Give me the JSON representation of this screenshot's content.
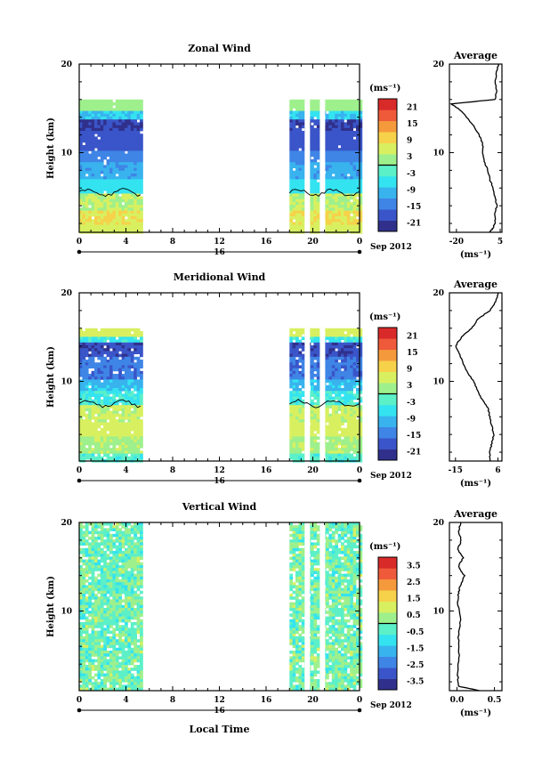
{
  "figure": {
    "x_axis_title": "Local Time",
    "date_label": "16",
    "month_year_label": "Sep 2012",
    "x_ticks": [
      "0",
      "4",
      "8",
      "12",
      "16",
      "20",
      "0"
    ],
    "y_label": "Height (km)",
    "y_ticks": [
      "20",
      "10"
    ],
    "colorbar_unit": "(ms⁻¹)",
    "profile_title": "Average"
  },
  "chart_data": [
    {
      "type": "heatmap",
      "title": "Zonal Wind",
      "xlabel": "",
      "ylabel": "Height (km)",
      "x_unit": "hours local time, 16 Sep 2012",
      "xlim": [
        0,
        24
      ],
      "ylim": [
        1,
        20
      ],
      "data_columns": [
        [
          0,
          5.3
        ],
        [
          18,
          24
        ]
      ],
      "band_top_km": 16,
      "clim": [
        -24,
        24
      ],
      "colorbar_ticks": [
        "21",
        "15",
        "9",
        "3",
        "-3",
        "-9",
        "-15",
        "-21"
      ],
      "zero_contour": true,
      "profile": {
        "title": "Average",
        "x_ticks": [
          "-20",
          "5"
        ],
        "xlim": [
          -24,
          6
        ],
        "xlabel": "(ms⁻¹)",
        "points": [
          [
            -1,
            1
          ],
          [
            1,
            1.5
          ],
          [
            2,
            2
          ],
          [
            2,
            3
          ],
          [
            3,
            4
          ],
          [
            2,
            5
          ],
          [
            1,
            6
          ],
          [
            -1,
            7
          ],
          [
            -2,
            8
          ],
          [
            -4,
            9
          ],
          [
            -5,
            10
          ],
          [
            -5,
            11
          ],
          [
            -7,
            12
          ],
          [
            -10,
            13
          ],
          [
            -14,
            14
          ],
          [
            -19,
            15
          ],
          [
            -23,
            15.5
          ],
          [
            2,
            16
          ],
          [
            3,
            17
          ],
          [
            2,
            18
          ],
          [
            3,
            19
          ],
          [
            4,
            20
          ]
        ]
      }
    },
    {
      "type": "heatmap",
      "title": "Meridional Wind",
      "xlabel": "",
      "ylabel": "Height (km)",
      "x_unit": "hours local time, 16 Sep 2012",
      "xlim": [
        0,
        24
      ],
      "ylim": [
        1,
        20
      ],
      "data_columns": [
        [
          0,
          5.3
        ],
        [
          18,
          24
        ]
      ],
      "band_top_km": 16,
      "clim": [
        -24,
        24
      ],
      "colorbar_ticks": [
        "21",
        "15",
        "9",
        "3",
        "-3",
        "-9",
        "-15",
        "-21"
      ],
      "zero_contour": true,
      "profile": {
        "title": "Average",
        "x_ticks": [
          "-15",
          "6"
        ],
        "xlim": [
          -18,
          8
        ],
        "xlabel": "(ms⁻¹)",
        "points": [
          [
            2,
            1
          ],
          [
            2,
            2
          ],
          [
            3,
            3
          ],
          [
            4,
            4
          ],
          [
            3,
            5
          ],
          [
            2,
            6
          ],
          [
            1,
            7
          ],
          [
            -2,
            8
          ],
          [
            -4,
            9
          ],
          [
            -6,
            10
          ],
          [
            -9,
            11
          ],
          [
            -11,
            12
          ],
          [
            -13,
            13
          ],
          [
            -15,
            14
          ],
          [
            -12,
            15
          ],
          [
            -7,
            16
          ],
          [
            -4,
            17
          ],
          [
            -1,
            17.5
          ],
          [
            2,
            18
          ],
          [
            5,
            19
          ],
          [
            6,
            20
          ]
        ]
      }
    },
    {
      "type": "heatmap",
      "title": "Vertical Wind",
      "xlabel": "Local Time",
      "ylabel": "Height (km)",
      "x_unit": "hours local time, 16 Sep 2012",
      "xlim": [
        0,
        24
      ],
      "ylim": [
        1,
        20
      ],
      "data_columns": [
        [
          0,
          5.3
        ],
        [
          18,
          24
        ]
      ],
      "band_top_km": 20,
      "clim": [
        -4,
        4
      ],
      "colorbar_ticks": [
        "3.5",
        "2.5",
        "1.5",
        "0.5",
        "-0.5",
        "-1.5",
        "-2.5",
        "-3.5"
      ],
      "zero_contour": false,
      "profile": {
        "title": "Average",
        "x_ticks": [
          "0.0",
          "0.5"
        ],
        "xlim": [
          -0.1,
          0.6
        ],
        "xlabel": "(ms⁻¹)",
        "points": [
          [
            0.3,
            1
          ],
          [
            0.02,
            1.5
          ],
          [
            0.01,
            3
          ],
          [
            0.03,
            5
          ],
          [
            0.02,
            7
          ],
          [
            0.05,
            9
          ],
          [
            0.01,
            11
          ],
          [
            0.02,
            12
          ],
          [
            0.05,
            13
          ],
          [
            0.1,
            14
          ],
          [
            0.02,
            15
          ],
          [
            0.08,
            16
          ],
          [
            0.01,
            17
          ],
          [
            0.06,
            18
          ],
          [
            0.02,
            19
          ],
          [
            0.05,
            20
          ]
        ]
      }
    }
  ],
  "colors": {
    "scale": [
      "#30308c",
      "#3a55c9",
      "#3f85e6",
      "#38b3ee",
      "#34e3f0",
      "#5cf0c8",
      "#9ef08c",
      "#d8f060",
      "#f6d24a",
      "#f59a3c",
      "#ef5a3a",
      "#d92a2a"
    ]
  }
}
